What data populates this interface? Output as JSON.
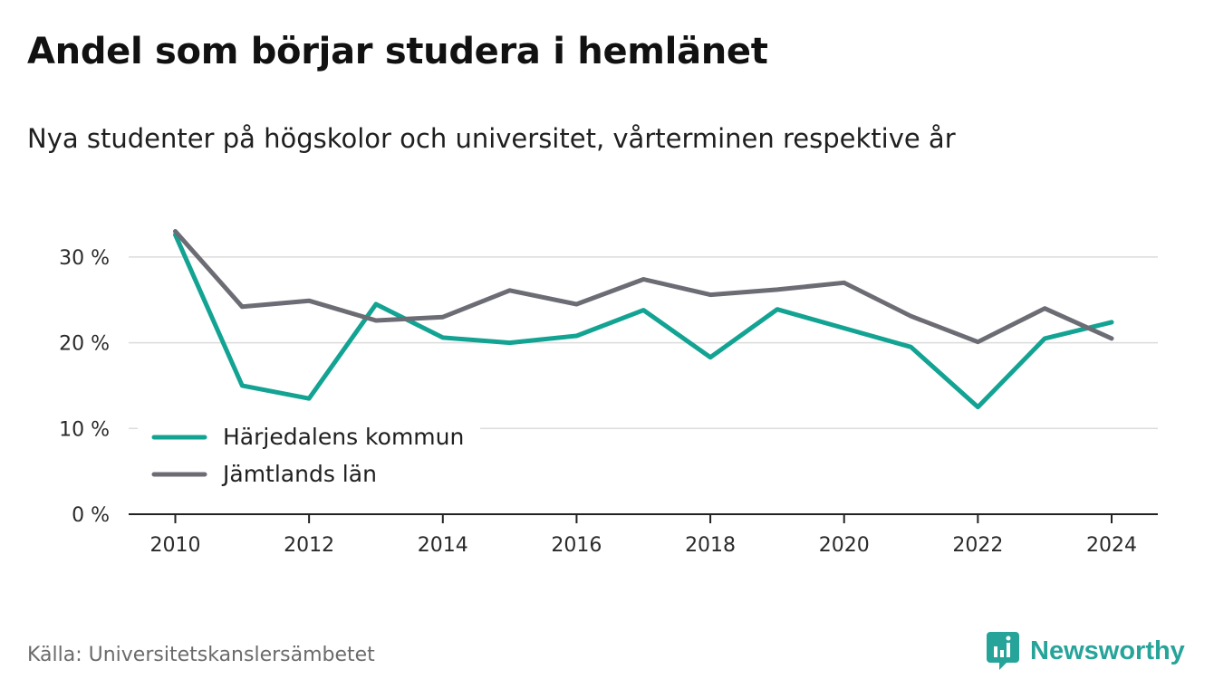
{
  "title": "Andel som börjar studera i hemlänet",
  "subtitle": "Nya studenter på högskolor och universitet, vårterminen respektive år",
  "source": "Källa: Universitetskanslersämbetet",
  "logo": {
    "text": "Newsworthy",
    "icon": "newsworthy-bar-chart-icon",
    "color": "#27a49a"
  },
  "chart_data": {
    "type": "line",
    "x": [
      2010,
      2011,
      2012,
      2013,
      2014,
      2015,
      2016,
      2017,
      2018,
      2019,
      2020,
      2021,
      2022,
      2023,
      2024
    ],
    "xticks": [
      2010,
      2012,
      2014,
      2016,
      2018,
      2020,
      2022,
      2024
    ],
    "xtick_labels": [
      "2010",
      "2012",
      "2014",
      "2016",
      "2018",
      "2020",
      "2022",
      "2024"
    ],
    "ylim": [
      0,
      35
    ],
    "yticks": [
      0,
      10,
      20,
      30
    ],
    "ytick_labels": [
      "0 %",
      "10 %",
      "20 %",
      "30 %"
    ],
    "grid": true,
    "legend_position": "bottom-left",
    "series": [
      {
        "name": "Härjedalens kommun",
        "color": "#13a393",
        "values": [
          32.6,
          15.0,
          13.5,
          24.5,
          20.6,
          20.0,
          20.8,
          23.8,
          18.3,
          23.9,
          21.7,
          19.5,
          12.5,
          20.5,
          22.4
        ]
      },
      {
        "name": "Jämtlands län",
        "color": "#6c6c74",
        "values": [
          33.0,
          24.2,
          24.9,
          22.6,
          23.0,
          26.1,
          24.5,
          27.4,
          25.6,
          26.2,
          27.0,
          23.1,
          20.1,
          24.0,
          20.5
        ]
      }
    ]
  }
}
